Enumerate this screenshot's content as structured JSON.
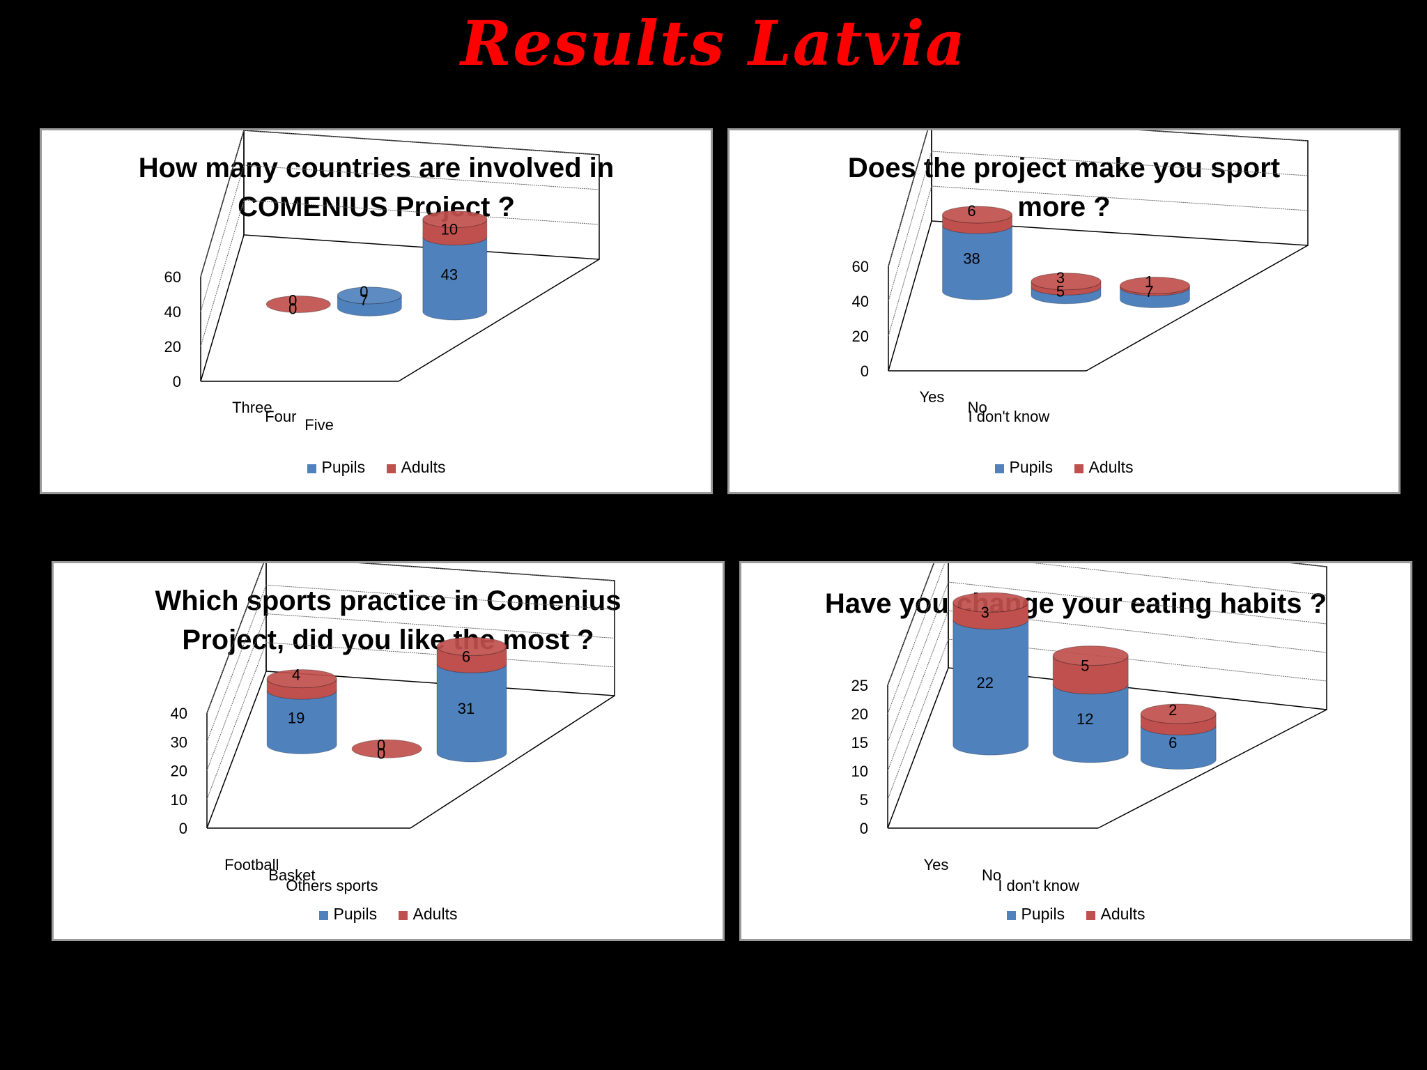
{
  "page_title": "Results Latvia",
  "colors": {
    "pupils": "#4f81bd",
    "adults": "#c0504d"
  },
  "chart_data": [
    {
      "type": "bar",
      "title": "How many countries are involved in\nCOMENIUS Project ?",
      "categories": [
        "Three",
        "Four",
        "Five"
      ],
      "series": [
        {
          "name": "Pupils",
          "values": [
            0,
            7,
            43
          ]
        },
        {
          "name": "Adults",
          "values": [
            0,
            0,
            10
          ]
        }
      ],
      "stacked": true,
      "ylim": [
        0,
        60
      ],
      "ticks": [
        0,
        20,
        40,
        60
      ],
      "legend": [
        "Pupils",
        "Adults"
      ],
      "legend_position": "bottom"
    },
    {
      "type": "bar",
      "title": "Does the project make you sport\nmore ?",
      "categories": [
        "Yes",
        "No",
        "I don't know"
      ],
      "series": [
        {
          "name": "Pupils",
          "values": [
            38,
            5,
            7
          ]
        },
        {
          "name": "Adults",
          "values": [
            6,
            3,
            1
          ]
        }
      ],
      "stacked": true,
      "ylim": [
        0,
        60
      ],
      "ticks": [
        0,
        20,
        40,
        60
      ],
      "legend": [
        "Pupils",
        "Adults"
      ],
      "legend_position": "bottom"
    },
    {
      "type": "bar",
      "title": "Which sports practice in Comenius\nProject, did you like the most ?",
      "categories": [
        "Football",
        "Basket",
        "Others sports"
      ],
      "series": [
        {
          "name": "Pupils",
          "values": [
            19,
            0,
            31
          ]
        },
        {
          "name": "Adults",
          "values": [
            4,
            0,
            6
          ]
        }
      ],
      "stacked": true,
      "ylim": [
        0,
        40
      ],
      "ticks": [
        0,
        10,
        20,
        30,
        40
      ],
      "legend": [
        "Pupils",
        "Adults"
      ],
      "legend_position": "bottom"
    },
    {
      "type": "bar",
      "title": "Have you change your eating habits ?",
      "categories": [
        "Yes",
        "No",
        "I don't know"
      ],
      "series": [
        {
          "name": "Pupils",
          "values": [
            22,
            12,
            6
          ]
        },
        {
          "name": "Adults",
          "values": [
            3,
            5,
            2
          ]
        }
      ],
      "stacked": true,
      "ylim": [
        0,
        25
      ],
      "ticks": [
        0,
        5,
        10,
        15,
        20,
        25
      ],
      "legend": [
        "Pupils",
        "Adults"
      ],
      "legend_position": "bottom"
    }
  ]
}
